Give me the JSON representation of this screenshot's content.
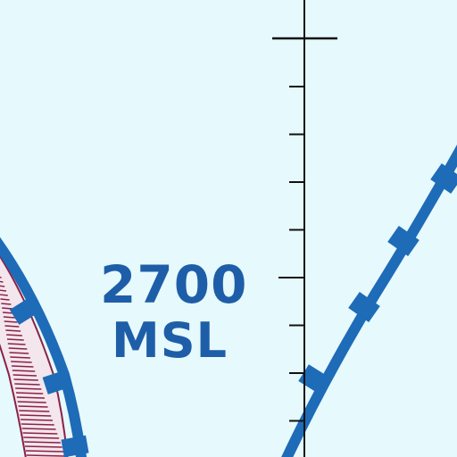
{
  "map": {
    "background_color": "#e6f9fc",
    "airspace_color": "#1e6bb8",
    "hatch_color": "#8a2248",
    "ink_color": "#111111"
  },
  "altitude_label": {
    "value": "2700",
    "reference": "MSL"
  },
  "features": [
    "magenta-hatched-boundary",
    "blue-airspace-boundary",
    "isogonic-tick-line"
  ]
}
